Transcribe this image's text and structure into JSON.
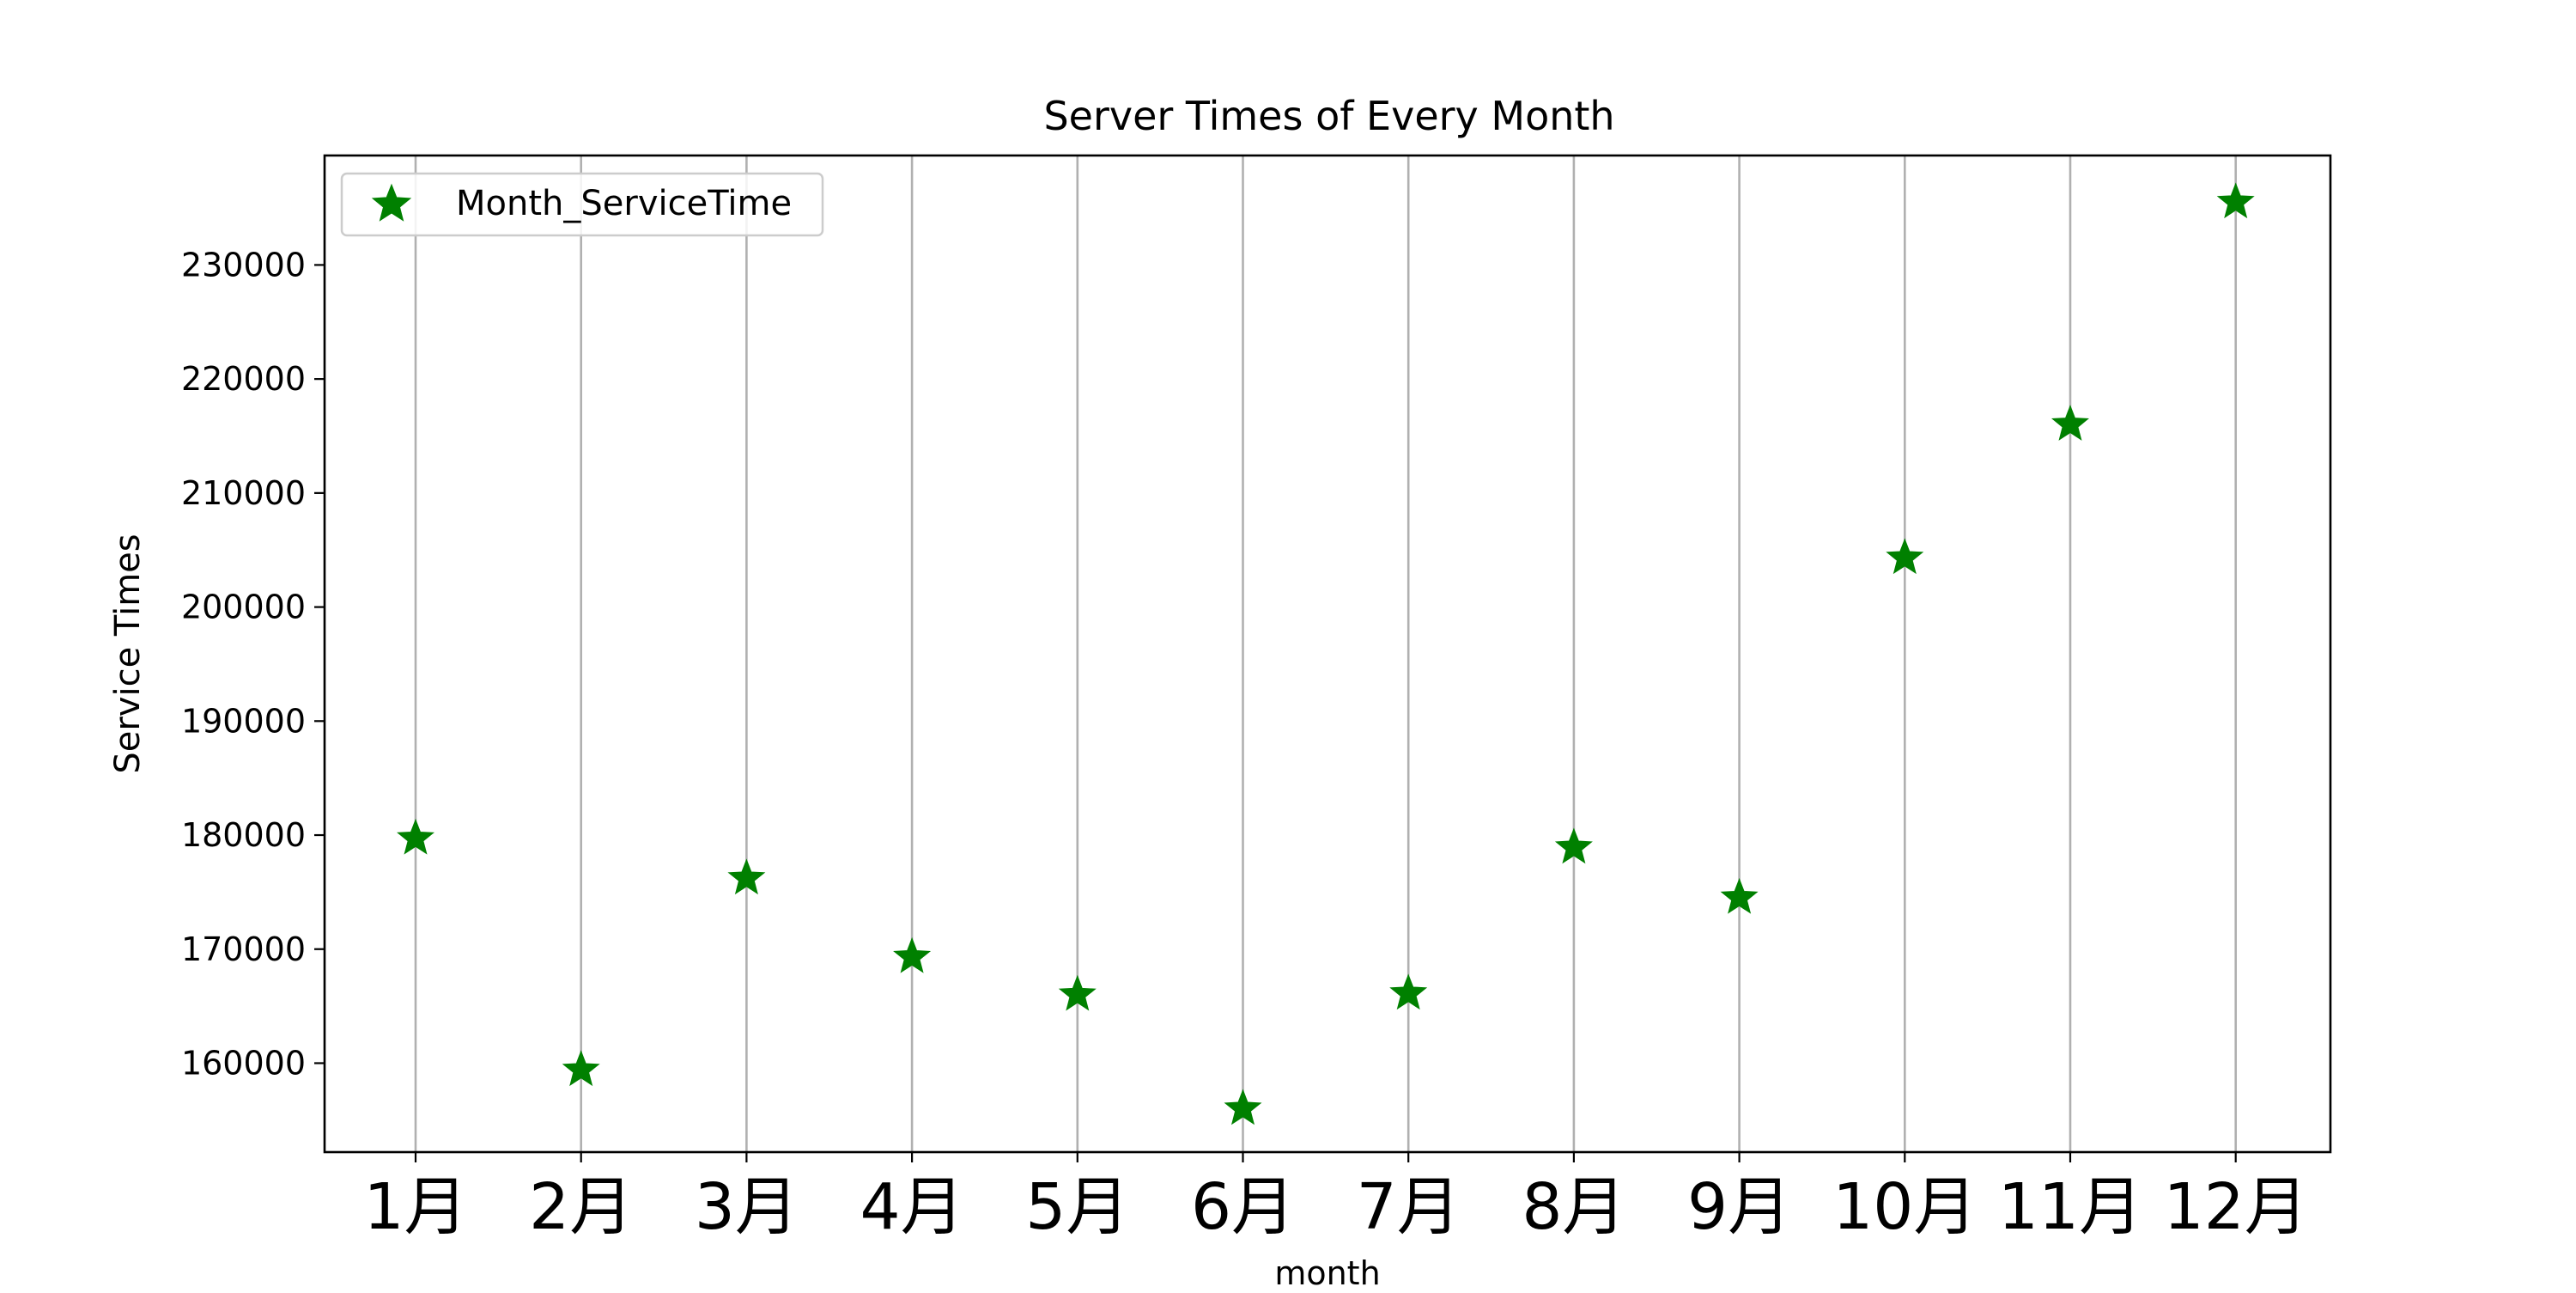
{
  "chart_data": {
    "type": "scatter",
    "title": "Server Times of Every Month",
    "xlabel": "month",
    "ylabel": "Service Times",
    "categories": [
      "1月",
      "2月",
      "3月",
      "4月",
      "5月",
      "6月",
      "7月",
      "8月",
      "9月",
      "10月",
      "11月",
      "12月"
    ],
    "series": [
      {
        "name": "Month_ServiceTime",
        "marker": "star",
        "color": "#008000",
        "values": [
          179700,
          159400,
          176200,
          169300,
          166000,
          156000,
          166100,
          178900,
          174500,
          204300,
          216000,
          235500
        ]
      }
    ],
    "ylim": [
      152200,
      239600
    ],
    "yticks": [
      160000,
      170000,
      180000,
      190000,
      200000,
      210000,
      220000,
      230000
    ],
    "grid": {
      "x": true,
      "y": false
    },
    "legend": {
      "position": "top-left"
    }
  }
}
